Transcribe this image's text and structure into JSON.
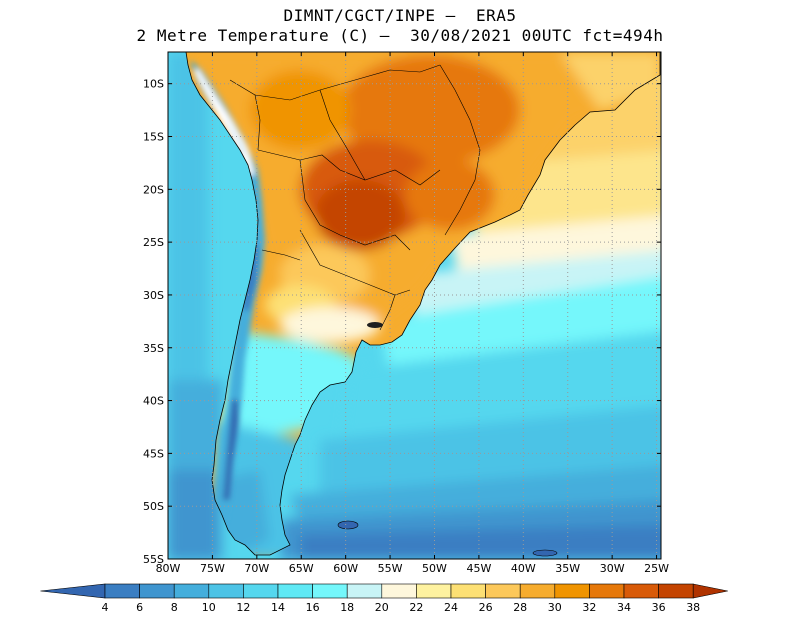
{
  "title": {
    "line1": "DIMNT/CGCT/INPE –  ERA5",
    "line2": "2 Metre Temperature (C) –  30/08/2021 00UTC fct=494h"
  },
  "map": {
    "lat_labels": [
      "10S",
      "15S",
      "20S",
      "25S",
      "30S",
      "35S",
      "40S",
      "45S",
      "50S",
      "55S"
    ],
    "lat_values": [
      -10,
      -15,
      -20,
      -25,
      -30,
      -35,
      -40,
      -45,
      -50,
      -55
    ],
    "lon_labels": [
      "80W",
      "75W",
      "70W",
      "65W",
      "60W",
      "55W",
      "50W",
      "45W",
      "40W",
      "35W",
      "30W",
      "25W"
    ],
    "lon_values": [
      -80,
      -75,
      -70,
      -65,
      -60,
      -55,
      -50,
      -45,
      -40,
      -35,
      -30,
      -25
    ],
    "lon_range": [
      -80,
      -24.5
    ],
    "lat_range": [
      -55,
      -7
    ]
  },
  "colorbar": {
    "labels": [
      "4",
      "6",
      "8",
      "10",
      "12",
      "14",
      "16",
      "18",
      "20",
      "22",
      "24",
      "26",
      "28",
      "30",
      "32",
      "34",
      "36",
      "38"
    ],
    "colors": [
      "#3366b0",
      "#3a7ec2",
      "#3f95cf",
      "#44aedc",
      "#4cc3e6",
      "#55d7ee",
      "#5fe9f5",
      "#74f7fb",
      "#c8f4f6",
      "#fef7dc",
      "#fef2a0",
      "#fde074",
      "#fcc85a",
      "#f6ac2e",
      "#f09400",
      "#e6780a",
      "#d85a08",
      "#c44400",
      "#b03300"
    ]
  }
}
